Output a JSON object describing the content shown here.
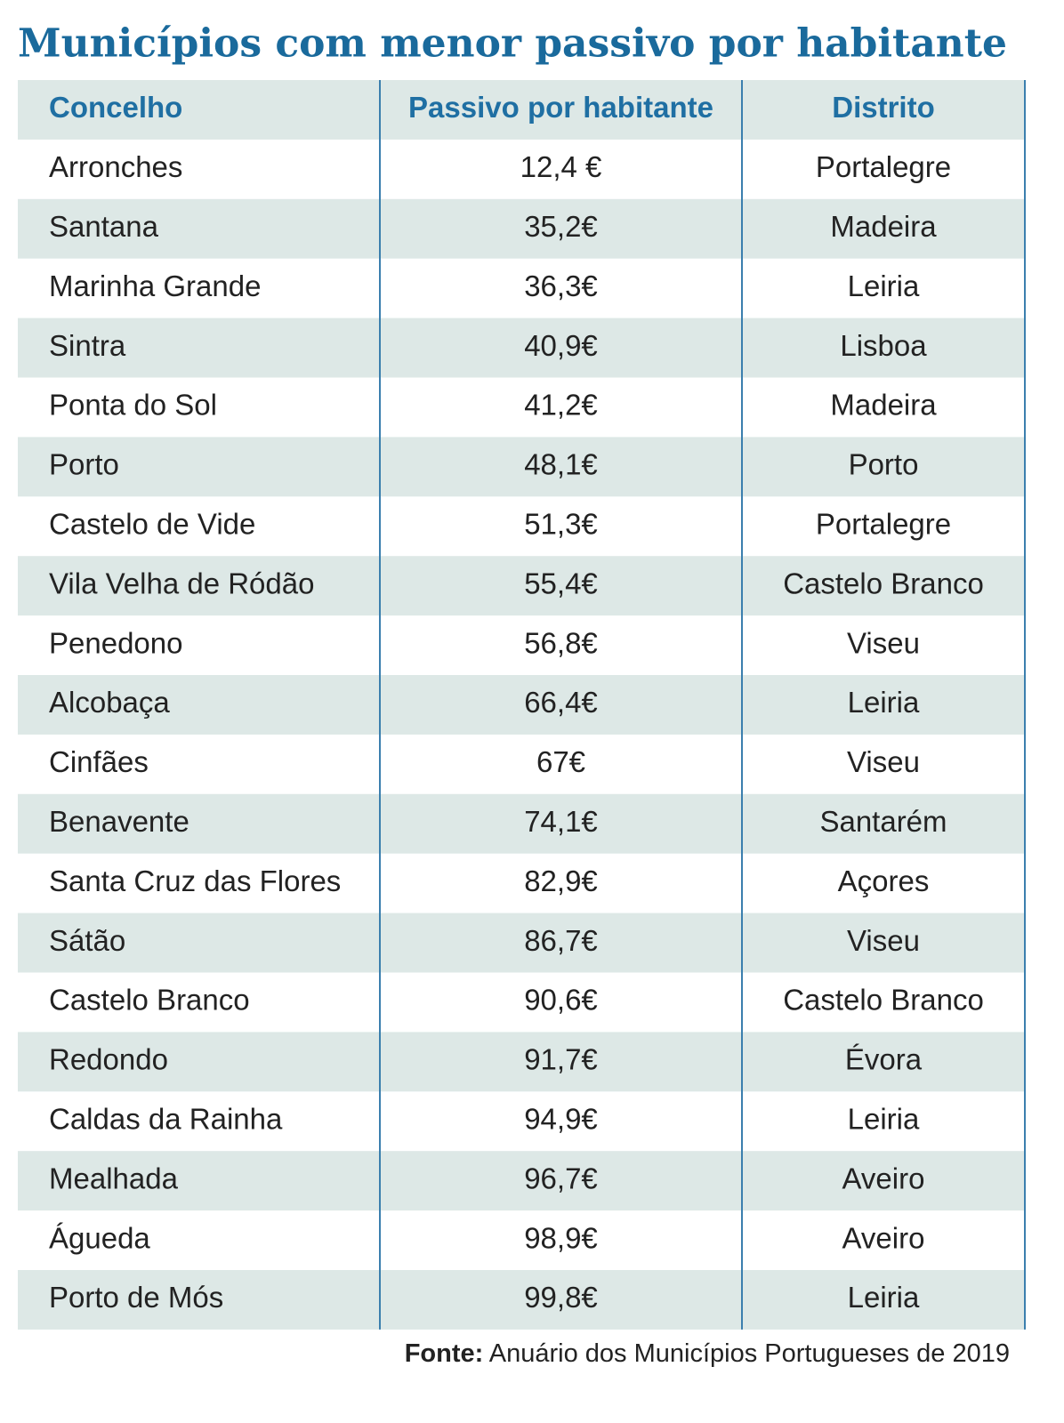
{
  "header": {
    "title": "Municípios com menor passivo por habitante"
  },
  "table": {
    "columns": [
      "Concelho",
      "Passivo por habitante",
      "Distrito"
    ],
    "rows": [
      [
        "Arronches",
        "12,4 €",
        "Portalegre"
      ],
      [
        "Santana",
        "35,2€",
        "Madeira"
      ],
      [
        "Marinha Grande",
        "36,3€",
        "Leiria"
      ],
      [
        "Sintra",
        "40,9€",
        "Lisboa"
      ],
      [
        "Ponta do Sol",
        "41,2€",
        "Madeira"
      ],
      [
        "Porto",
        "48,1€",
        "Porto"
      ],
      [
        "Castelo de Vide",
        "51,3€",
        "Portalegre"
      ],
      [
        "Vila Velha de Ródão",
        "55,4€",
        "Castelo Branco"
      ],
      [
        "Penedono",
        "56,8€",
        "Viseu"
      ],
      [
        "Alcobaça",
        "66,4€",
        "Leiria"
      ],
      [
        "Cinfães",
        "67€",
        "Viseu"
      ],
      [
        "Benavente",
        "74,1€",
        "Santarém"
      ],
      [
        "Santa Cruz das Flores",
        "82,9€",
        "Açores"
      ],
      [
        "Sátão",
        "86,7€",
        "Viseu"
      ],
      [
        "Castelo Branco",
        "90,6€",
        "Castelo Branco"
      ],
      [
        "Redondo",
        "91,7€",
        "Évora"
      ],
      [
        "Caldas da Rainha",
        "94,9€",
        "Leiria"
      ],
      [
        "Mealhada",
        "96,7€",
        "Aveiro"
      ],
      [
        "Águeda",
        "98,9€",
        "Aveiro"
      ],
      [
        "Porto de Mós",
        "99,8€",
        "Leiria"
      ]
    ]
  },
  "footer": {
    "label": "Fonte:",
    "text": "Anuário dos Municípios Portugueses de 2019"
  }
}
